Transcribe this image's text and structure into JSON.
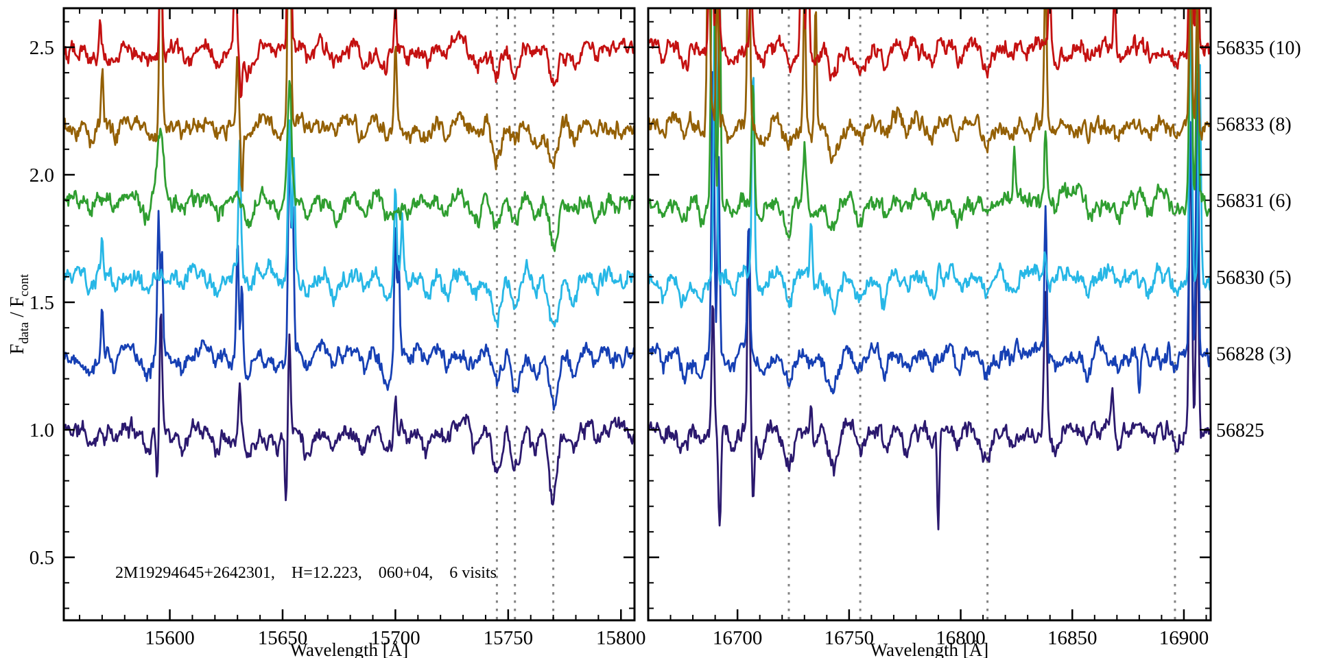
{
  "chart_data": {
    "type": "line",
    "title": "",
    "description": "Six APOGEE visit spectra (normalized flux vs wavelength), vertically offset by 0.3, shown in two wavelength windows with dotted airglow-line markers",
    "y_axis": {
      "label_parts": {
        "main": "F",
        "sub1": "data",
        "mid": " / F",
        "sub2": "cont"
      },
      "range": [
        0.253,
        2.653
      ],
      "major_ticks": [
        0.5,
        1.0,
        1.5,
        2.0,
        2.5
      ],
      "tick_labels": [
        "0.5",
        "1.0",
        "1.5",
        "2.0",
        "2.5"
      ],
      "minor_step": 0.1
    },
    "panels": [
      {
        "xlabel": "Wavelength [Å]",
        "x_range": [
          15553,
          15806
        ],
        "major_ticks": [
          15600,
          15650,
          15700,
          15750,
          15800
        ],
        "minor_step": 10,
        "dashed_lines": [
          15745,
          15753,
          15770
        ],
        "absorption_lines": [
          [
            15565,
            0.05,
            1.4
          ],
          [
            15576,
            0.04,
            1.2
          ],
          [
            15590,
            0.05,
            1.5
          ],
          [
            15606,
            0.05,
            1.4
          ],
          [
            15621,
            0.05,
            1.3
          ],
          [
            15635,
            0.06,
            1.5
          ],
          [
            15648,
            0.04,
            1.2
          ],
          [
            15661,
            0.06,
            1.5
          ],
          [
            15673,
            0.05,
            1.3
          ],
          [
            15686,
            0.06,
            1.6
          ],
          [
            15696,
            0.07,
            1.9
          ],
          [
            15706,
            0.05,
            1.4
          ],
          [
            15714,
            0.06,
            1.4
          ],
          [
            15723,
            0.05,
            1.3
          ],
          [
            15736,
            0.06,
            1.7
          ],
          [
            15745,
            0.13,
            1.9
          ],
          [
            15753,
            0.11,
            1.8
          ],
          [
            15762,
            0.06,
            1.4
          ],
          [
            15770,
            0.17,
            2.0
          ],
          [
            15779,
            0.07,
            1.5
          ],
          [
            15789,
            0.05,
            1.4
          ]
        ]
      },
      {
        "xlabel": "Wavelength [Å]",
        "x_range": [
          16660,
          16912
        ],
        "major_ticks": [
          16700,
          16750,
          16800,
          16850,
          16900
        ],
        "minor_step": 10,
        "dashed_lines": [
          16723,
          16755,
          16812,
          16896
        ],
        "absorption_lines": [
          [
            16667,
            0.05,
            1.4
          ],
          [
            16676,
            0.06,
            1.5
          ],
          [
            16684,
            0.07,
            1.7
          ],
          [
            16698,
            0.05,
            1.4
          ],
          [
            16711,
            0.06,
            1.5
          ],
          [
            16723,
            0.09,
            1.9
          ],
          [
            16734,
            0.06,
            1.5
          ],
          [
            16743,
            0.12,
            2.2
          ],
          [
            16755,
            0.09,
            1.9
          ],
          [
            16766,
            0.06,
            1.4
          ],
          [
            16776,
            0.05,
            1.4
          ],
          [
            16787,
            0.06,
            1.5
          ],
          [
            16799,
            0.05,
            1.4
          ],
          [
            16812,
            0.07,
            1.7
          ],
          [
            16823,
            0.05,
            1.4
          ],
          [
            16842,
            0.04,
            1.4
          ],
          [
            16857,
            0.05,
            1.4
          ],
          [
            16871,
            0.04,
            1.3
          ],
          [
            16885,
            0.05,
            1.4
          ],
          [
            16896,
            0.05,
            1.5
          ]
        ]
      }
    ],
    "series": [
      {
        "label": "56825",
        "color": "#2b196e",
        "offset": 1.0,
        "depth_factor": 1.35,
        "seed": 11,
        "spikes": [
          [
            [
              15594.5,
              -0.18,
              0.5
            ],
            [
              15596,
              0.5,
              0.5
            ],
            [
              15631,
              0.18,
              0.5
            ],
            [
              15651.5,
              -0.28,
              0.5
            ],
            [
              15653,
              0.38,
              0.5
            ],
            [
              15700,
              0.12,
              0.5
            ]
          ],
          [
            [
              16689,
              0.5,
              0.5
            ],
            [
              16692,
              -0.42,
              0.6
            ],
            [
              16705,
              0.8,
              0.55
            ],
            [
              16707,
              -0.28,
              0.5
            ],
            [
              16733,
              0.15,
              0.5
            ],
            [
              16790,
              -0.38,
              0.5
            ],
            [
              16838,
              0.55,
              0.7
            ],
            [
              16868,
              0.12,
              0.5
            ],
            [
              16903,
              1.2,
              0.6
            ],
            [
              16906,
              0.85,
              0.55
            ]
          ]
        ]
      },
      {
        "label": "56828 (3)",
        "color": "#1640b4",
        "offset": 1.3,
        "depth_factor": 1.15,
        "seed": 22,
        "spikes": [
          [
            [
              15570,
              0.22,
              0.5
            ],
            [
              15595,
              0.55,
              0.5
            ],
            [
              15596.5,
              0.4,
              0.45
            ],
            [
              15630,
              0.42,
              0.5
            ],
            [
              15632,
              0.28,
              0.45
            ],
            [
              15653,
              0.78,
              0.55
            ],
            [
              15654.5,
              0.55,
              0.5
            ],
            [
              15700,
              0.55,
              0.5
            ],
            [
              15701.5,
              0.4,
              0.45
            ]
          ],
          [
            [
              16689,
              1.2,
              0.6
            ],
            [
              16691.5,
              0.8,
              0.5
            ],
            [
              16705,
              0.5,
              0.55
            ],
            [
              16838,
              0.55,
              0.5
            ],
            [
              16880,
              -0.15,
              0.45
            ],
            [
              16903,
              0.95,
              0.6
            ],
            [
              16906,
              1.1,
              0.55
            ]
          ]
        ]
      },
      {
        "label": "56830 (5)",
        "color": "#27b7e6",
        "offset": 1.6,
        "depth_factor": 1.25,
        "seed": 33,
        "spikes": [
          [
            [
              15570,
              0.16,
              0.5
            ],
            [
              15631,
              0.48,
              0.55
            ],
            [
              15653,
              0.62,
              0.55
            ],
            [
              15655,
              0.42,
              0.5
            ],
            [
              15700,
              0.36,
              0.5
            ],
            [
              15703,
              0.22,
              0.45
            ]
          ],
          [
            [
              16690,
              1.3,
              0.6
            ],
            [
              16707,
              0.78,
              0.55
            ],
            [
              16733,
              0.28,
              0.5
            ],
            [
              16838,
              0.14,
              0.5
            ],
            [
              16903,
              1.15,
              0.6
            ],
            [
              16907,
              0.9,
              0.55
            ]
          ]
        ]
      },
      {
        "label": "56831 (6)",
        "color": "#2f9e30",
        "offset": 1.9,
        "depth_factor": 1.0,
        "seed": 44,
        "spikes": [
          [
            [
              15596,
              0.28,
              1.4
            ],
            [
              15653,
              0.5,
              0.9
            ]
          ],
          [
            [
              16689,
              1.4,
              0.7
            ],
            [
              16692,
              0.9,
              0.5
            ],
            [
              16707,
              0.45,
              0.6
            ],
            [
              16730,
              0.2,
              0.5
            ],
            [
              16824,
              0.25,
              0.45
            ],
            [
              16838,
              0.28,
              0.5
            ],
            [
              16903,
              1.0,
              0.6
            ],
            [
              16906,
              0.75,
              0.5
            ]
          ]
        ]
      },
      {
        "label": "56833 (8)",
        "color": "#946005",
        "offset": 2.2,
        "depth_factor": 1.0,
        "seed": 55,
        "spikes": [
          [
            [
              15570,
              0.2,
              0.5
            ],
            [
              15596,
              0.95,
              0.55
            ],
            [
              15630,
              0.3,
              0.5
            ],
            [
              15632,
              -0.25,
              0.45
            ],
            [
              15653,
              1.3,
              0.6
            ],
            [
              15700,
              0.32,
              0.5
            ]
          ],
          [
            [
              16687,
              0.85,
              0.6
            ],
            [
              16691,
              0.6,
              0.5
            ],
            [
              16705,
              0.95,
              0.55
            ],
            [
              16730,
              0.55,
              0.5
            ],
            [
              16735,
              0.5,
              0.5
            ],
            [
              16838,
              0.62,
              0.55
            ],
            [
              16903,
              0.7,
              0.6
            ],
            [
              16906,
              0.55,
              0.5
            ]
          ]
        ]
      },
      {
        "label": "56835 (10)",
        "color": "#c41111",
        "offset": 2.5,
        "depth_factor": 0.95,
        "seed": 66,
        "spikes": [
          [
            [
              15569,
              0.12,
              0.5
            ],
            [
              15596,
              0.5,
              0.5
            ],
            [
              15629,
              0.55,
              0.5
            ],
            [
              15631.5,
              -0.22,
              0.5
            ],
            [
              15653,
              1.3,
              0.6
            ],
            [
              15700,
              0.2,
              0.5
            ]
          ],
          [
            [
              16688,
              1.3,
              0.6
            ],
            [
              16691,
              0.9,
              0.5
            ],
            [
              16706,
              0.3,
              0.5
            ],
            [
              16729,
              0.95,
              0.55
            ],
            [
              16731.5,
              0.7,
              0.5
            ],
            [
              16840,
              0.25,
              0.55
            ],
            [
              16869,
              0.22,
              0.5
            ],
            [
              16903,
              1.0,
              0.6
            ],
            [
              16906,
              0.8,
              0.5
            ]
          ]
        ]
      }
    ],
    "legend": {
      "position": "right",
      "entries": [
        "56835 (10)",
        "56833 (8)",
        "56831 (6)",
        "56830 (5)",
        "56828 (3)",
        "56825"
      ]
    },
    "annotation": {
      "parts": [
        "2M19294645+2642301,",
        "H=12.223,",
        "060+04,",
        "6 visits"
      ]
    },
    "grid": false
  },
  "colors": {
    "axis": "#000000",
    "dashed_line": "#848484",
    "background": "#ffffff"
  }
}
